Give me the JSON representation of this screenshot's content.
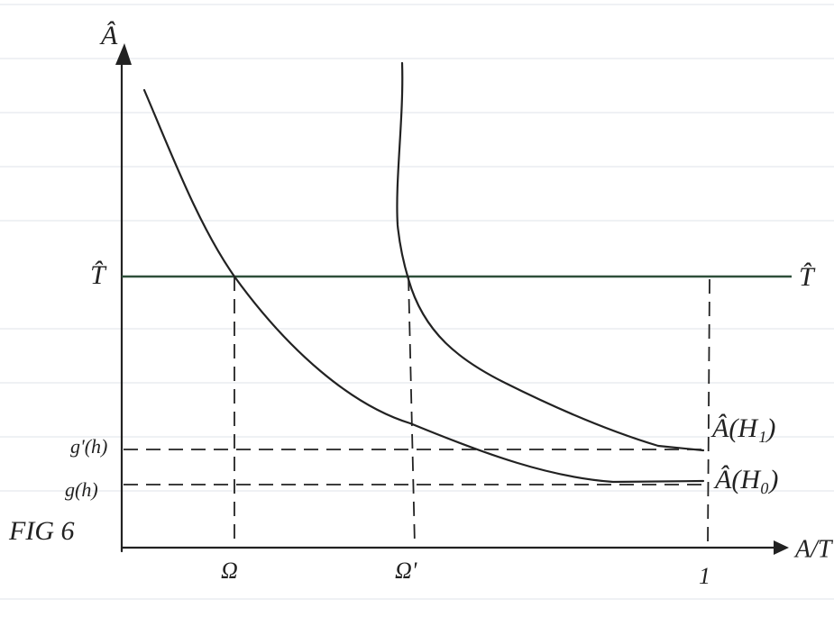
{
  "axes": {
    "y_label": "Â",
    "x_label": "A/T"
  },
  "threshold": {
    "left_label": "T̂",
    "right_label": "T̂"
  },
  "levels": {
    "upper": "g'(h)",
    "lower": "g(h)"
  },
  "x_marks": {
    "first": "Ω",
    "second": "Ω'",
    "end": "1"
  },
  "curves": {
    "h1": "Â(H₁)",
    "h0": "Â(H₀)"
  },
  "figure_label": "FIG 6"
}
